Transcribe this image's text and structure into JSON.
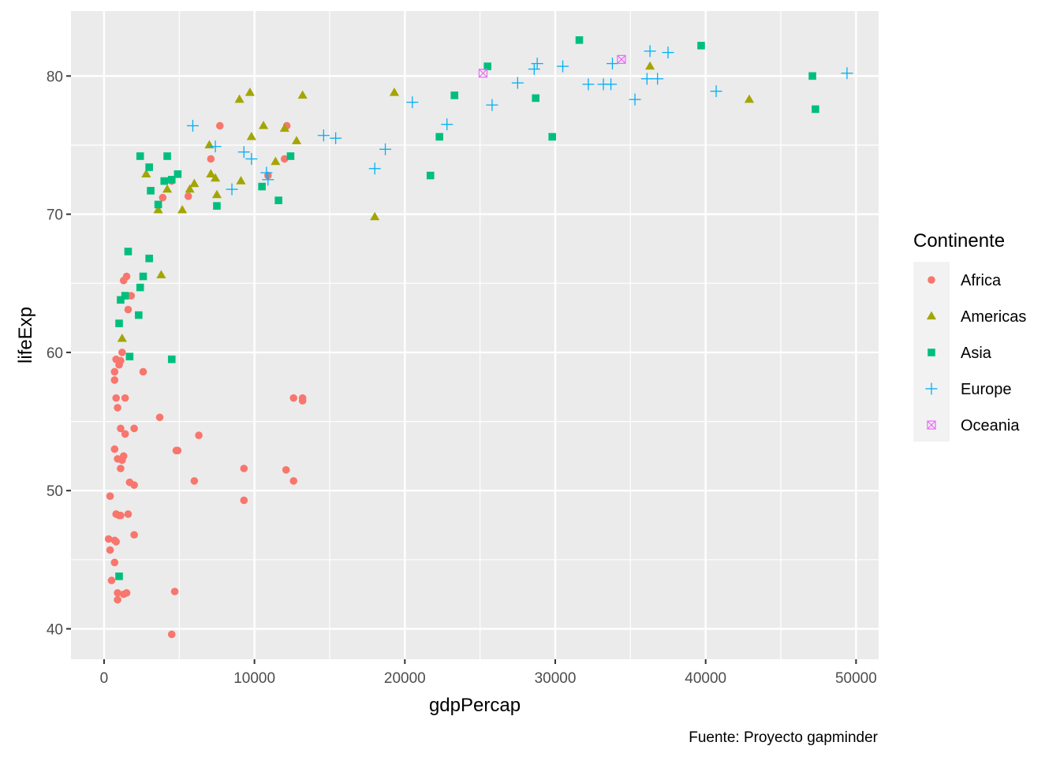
{
  "chart_data": {
    "type": "scatter",
    "title": "",
    "xlabel": "gdpPercap",
    "ylabel": "lifeExp",
    "caption": "Fuente: Proyecto gapminder",
    "xlim": [
      -2200,
      51500
    ],
    "ylim": [
      37.8,
      84.7
    ],
    "x_ticks": [
      0,
      10000,
      20000,
      30000,
      40000,
      50000
    ],
    "x_tick_labels": [
      "0",
      "10000",
      "20000",
      "30000",
      "40000",
      "50000"
    ],
    "y_ticks": [
      40,
      50,
      60,
      70,
      80
    ],
    "y_tick_labels": [
      "40",
      "50",
      "60",
      "70",
      "80"
    ],
    "grid": true,
    "legend": {
      "title": "Continente",
      "position": "right"
    },
    "series": [
      {
        "name": "Africa",
        "color": "#F8766D",
        "shape": "circle",
        "points": [
          [
            12150,
            76.4
          ],
          [
            4500,
            72.4
          ],
          [
            1100,
            48.2
          ],
          [
            1700,
            50.6
          ],
          [
            900,
            52.3
          ],
          [
            1100,
            51.6
          ],
          [
            2000,
            54.5
          ],
          [
            1300,
            65.2
          ],
          [
            1100,
            59.4
          ],
          [
            4900,
            52.9
          ],
          [
            1400,
            56.7
          ],
          [
            6000,
            50.7
          ],
          [
            800,
            56.7
          ],
          [
            1000,
            59.1
          ],
          [
            5600,
            71.3
          ],
          [
            9300,
            51.6
          ],
          [
            12600,
            56.7
          ],
          [
            700,
            58.6
          ],
          [
            6300,
            54.0
          ],
          [
            13200,
            56.5
          ],
          [
            7100,
            74.0
          ],
          [
            7700,
            76.4
          ],
          [
            3900,
            71.2
          ],
          [
            1800,
            64.1
          ],
          [
            1600,
            63.1
          ],
          [
            2600,
            58.6
          ],
          [
            3700,
            55.3
          ],
          [
            1400,
            54.1
          ],
          [
            1100,
            54.5
          ],
          [
            900,
            56.0
          ],
          [
            1600,
            48.3
          ],
          [
            2000,
            46.8
          ],
          [
            800,
            48.3
          ],
          [
            1300,
            52.5
          ],
          [
            700,
            58.0
          ],
          [
            700,
            53.0
          ],
          [
            300,
            46.5
          ],
          [
            400,
            45.7
          ],
          [
            500,
            43.5
          ],
          [
            700,
            46.4
          ],
          [
            700,
            44.8
          ],
          [
            900,
            42.6
          ],
          [
            900,
            42.1
          ],
          [
            1300,
            42.5
          ],
          [
            1500,
            42.6
          ],
          [
            4700,
            42.7
          ],
          [
            4500,
            39.6
          ],
          [
            800,
            46.3
          ],
          [
            1000,
            48.2
          ],
          [
            1200,
            52.2
          ],
          [
            2000,
            50.4
          ],
          [
            400,
            49.6
          ],
          [
            1200,
            60.0
          ],
          [
            1500,
            65.5
          ],
          [
            800,
            59.5
          ],
          [
            9300,
            49.3
          ],
          [
            10900,
            72.8
          ],
          [
            12000,
            74.0
          ],
          [
            12100,
            51.5
          ],
          [
            12600,
            50.7
          ],
          [
            4800,
            52.9
          ],
          [
            13200,
            56.7
          ]
        ]
      },
      {
        "name": "Americas",
        "color": "#A3A500",
        "shape": "triangle",
        "points": [
          [
            9000,
            78.3
          ],
          [
            9700,
            78.8
          ],
          [
            13200,
            78.6
          ],
          [
            19300,
            78.8
          ],
          [
            36300,
            80.7
          ],
          [
            42900,
            78.3
          ],
          [
            7000,
            75.0
          ],
          [
            9800,
            75.6
          ],
          [
            10600,
            76.4
          ],
          [
            12000,
            76.2
          ],
          [
            12800,
            75.3
          ],
          [
            7100,
            72.9
          ],
          [
            7400,
            72.6
          ],
          [
            5700,
            71.8
          ],
          [
            6000,
            72.2
          ],
          [
            11400,
            73.8
          ],
          [
            9100,
            72.4
          ],
          [
            7500,
            71.4
          ],
          [
            4200,
            71.8
          ],
          [
            3600,
            70.3
          ],
          [
            5200,
            70.3
          ],
          [
            2800,
            72.9
          ],
          [
            18000,
            69.8
          ],
          [
            3800,
            65.6
          ],
          [
            1200,
            61.0
          ]
        ]
      },
      {
        "name": "Asia",
        "color": "#00BF7D",
        "shape": "square",
        "points": [
          [
            31600,
            82.6
          ],
          [
            39700,
            82.2
          ],
          [
            25500,
            80.7
          ],
          [
            47100,
            80.0
          ],
          [
            47300,
            77.6
          ],
          [
            28700,
            78.4
          ],
          [
            23300,
            78.6
          ],
          [
            29800,
            75.6
          ],
          [
            22300,
            75.6
          ],
          [
            21700,
            72.8
          ],
          [
            12400,
            74.2
          ],
          [
            11600,
            71.0
          ],
          [
            10500,
            72.0
          ],
          [
            7500,
            70.6
          ],
          [
            4900,
            72.9
          ],
          [
            4200,
            74.2
          ],
          [
            4500,
            72.5
          ],
          [
            3100,
            71.7
          ],
          [
            3000,
            73.4
          ],
          [
            2400,
            74.2
          ],
          [
            3600,
            70.7
          ],
          [
            3000,
            66.8
          ],
          [
            4000,
            72.4
          ],
          [
            2600,
            65.5
          ],
          [
            2400,
            64.7
          ],
          [
            2300,
            62.7
          ],
          [
            1600,
            67.3
          ],
          [
            1400,
            64.1
          ],
          [
            1100,
            63.8
          ],
          [
            1000,
            62.1
          ],
          [
            1700,
            59.7
          ],
          [
            4500,
            59.5
          ],
          [
            1000,
            43.8
          ]
        ]
      },
      {
        "name": "Europe",
        "color": "#00B0F6",
        "shape": "plus",
        "points": [
          [
            49400,
            80.2
          ],
          [
            40700,
            78.9
          ],
          [
            37500,
            81.7
          ],
          [
            36300,
            81.8
          ],
          [
            36100,
            79.8
          ],
          [
            36800,
            79.8
          ],
          [
            35300,
            78.3
          ],
          [
            33800,
            80.9
          ],
          [
            33700,
            79.4
          ],
          [
            33200,
            79.4
          ],
          [
            32200,
            79.4
          ],
          [
            30500,
            80.7
          ],
          [
            28800,
            80.9
          ],
          [
            28600,
            80.5
          ],
          [
            27500,
            79.5
          ],
          [
            25800,
            77.9
          ],
          [
            22800,
            76.5
          ],
          [
            20500,
            78.1
          ],
          [
            18700,
            74.7
          ],
          [
            18000,
            73.3
          ],
          [
            15400,
            75.5
          ],
          [
            14600,
            75.7
          ],
          [
            10800,
            73.0
          ],
          [
            10900,
            72.5
          ],
          [
            9800,
            74.0
          ],
          [
            9300,
            74.5
          ],
          [
            8500,
            71.8
          ],
          [
            7400,
            74.9
          ],
          [
            5900,
            76.4
          ]
        ]
      },
      {
        "name": "Oceania",
        "color": "#E76BF3",
        "shape": "square-cross",
        "points": [
          [
            34400,
            81.2
          ],
          [
            25200,
            80.2
          ]
        ]
      }
    ]
  }
}
